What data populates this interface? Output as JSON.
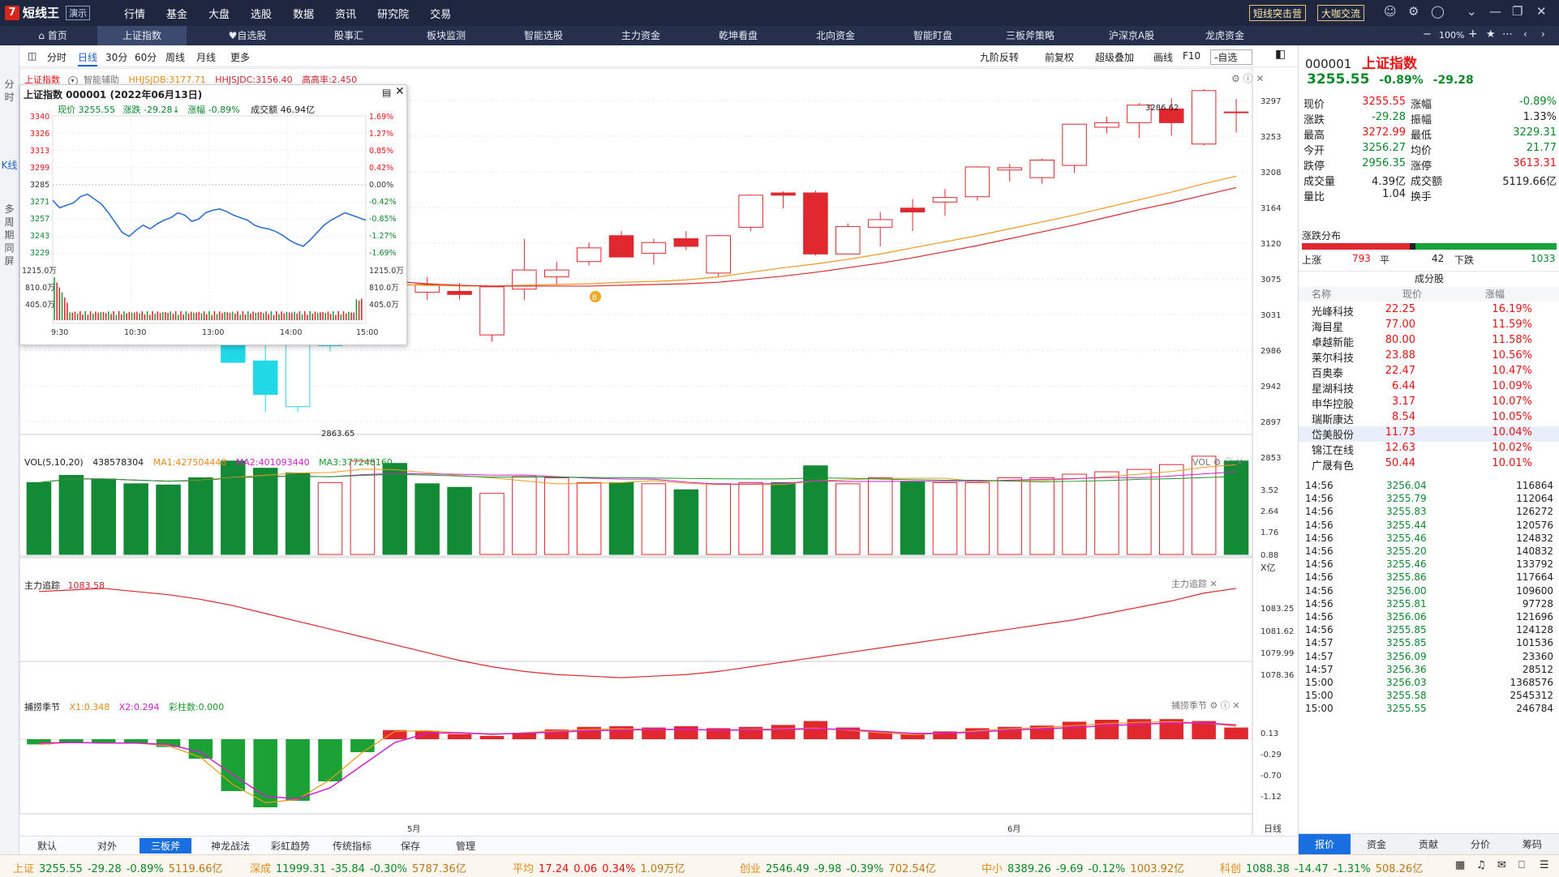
{
  "titlebar": {
    "logo_char": "7",
    "app_name": "短线王",
    "demo_badge": "演示",
    "menu": [
      "行情",
      "基金",
      "大盘",
      "选股",
      "数据",
      "资讯",
      "研究院",
      "交易"
    ],
    "btn1": "短线突击营",
    "btn2": "大咖交流"
  },
  "navbar": {
    "tabs": [
      "首页",
      "上证指数",
      "自选股",
      "股事汇",
      "板块监测",
      "智能选股",
      "主力资金",
      "乾坤看盘",
      "北向资金",
      "智能盯盘",
      "三板斧策略",
      "沪深京A股",
      "龙虎资金"
    ],
    "zoom": "100%"
  },
  "sidebar": [
    "分时",
    "K线",
    "多周期同屏"
  ],
  "toolbar": {
    "periods": [
      "分时",
      "日线",
      "30分",
      "60分",
      "周线",
      "月线",
      "更多"
    ],
    "right": [
      "九阶反转",
      "前复权",
      "超级叠加",
      "画线",
      "F10"
    ],
    "watchlist": "-自选"
  },
  "chart_header": {
    "name": "上证指数",
    "assist": "智能辅助",
    "hhjsjdb": "HHJSJDB:3177.71",
    "hhjsjdc": "HHJSJDC:3156.40",
    "ratio": "高高率:2.450"
  },
  "popup": {
    "title": "上证指数 000001 (2022年06月13日)",
    "price_label": "现价",
    "price": "3255.55",
    "change_label": "涨跌",
    "change": "-29.28↓",
    "pct_label": "涨幅",
    "pct": "-0.89%",
    "amt_label": "成交额",
    "amt": "46.94亿",
    "left_ticks": [
      "3340",
      "3326",
      "3313",
      "3299",
      "3285",
      "3271",
      "3257",
      "3243",
      "3229"
    ],
    "right_ticks": [
      "1.69%",
      "1.27%",
      "0.85%",
      "0.42%",
      "0.00%",
      "-0.42%",
      "-0.85%",
      "-1.27%",
      "-1.69%"
    ],
    "vol_ticks": [
      "1215.0万",
      "810.0万",
      "405.0万"
    ],
    "times": [
      "9:30",
      "10:30",
      "13:00",
      "14:00",
      "15:00"
    ],
    "intraday": [
      3272,
      3266,
      3268,
      3270,
      3275,
      3277,
      3273,
      3269,
      3262,
      3254,
      3246,
      3243,
      3248,
      3252,
      3249,
      3253,
      3256,
      3258,
      3262,
      3260,
      3255,
      3257,
      3262,
      3264,
      3265,
      3263,
      3260,
      3258,
      3256,
      3252,
      3250,
      3249,
      3247,
      3244,
      3240,
      3237,
      3235,
      3240,
      3246,
      3252,
      3256,
      3259,
      3262,
      3260,
      3258,
      3256
    ]
  },
  "price_axis": [
    "3297",
    "3253",
    "3208",
    "3164",
    "3120",
    "3075",
    "3031",
    "2986",
    "2942",
    "2897",
    "2853"
  ],
  "annotations": {
    "high": "3286.62",
    "low": "2863.65",
    "b_marker": "B"
  },
  "vol_panel": {
    "label": "VOL(5,10,20)",
    "value": "438578304",
    "ma1": "MA1:427504448",
    "ma2": "MA2:401093440",
    "ma3": "MA3:377248160",
    "title": "VOL",
    "ticks": [
      "3.52",
      "2.64",
      "1.76",
      "0.88"
    ],
    "unit": "X亿"
  },
  "zhuli_panel": {
    "label": "主力追踪",
    "value": "1083.58",
    "ticks": [
      "1083.25",
      "1081.62",
      "1079.99",
      "1078.36"
    ]
  },
  "buzhuo_panel": {
    "label": "捕捞季节",
    "x1": "X1:0.348",
    "x2": "X2:0.294",
    "color_bar": "彩柱数:0.000",
    "ticks": [
      "0.13",
      "-0.29",
      "-0.70",
      "-1.12"
    ]
  },
  "x_axis": {
    "m5": "5月",
    "m6": "6月",
    "period": "日线"
  },
  "bottom_tabs": [
    "默认",
    "对外",
    "三板斧",
    "神龙战法",
    "彩虹趋势",
    "传统指标",
    "保存",
    "管理"
  ],
  "right_panel": {
    "code": "000001",
    "name": "上证指数",
    "price": "3255.55",
    "pct": "-0.89%",
    "change": "-29.28",
    "quote_rows": [
      {
        "l1": "现价",
        "v1": "3255.55",
        "l2": "涨幅",
        "v2": "-0.89%",
        "c1": "red",
        "c2": "green"
      },
      {
        "l1": "涨跌",
        "v1": "-29.28",
        "l2": "振幅",
        "v2": "1.33%",
        "c1": "green",
        "c2": "black"
      },
      {
        "l1": "最高",
        "v1": "3272.99",
        "l2": "最低",
        "v2": "3229.31",
        "c1": "red",
        "c2": "green"
      },
      {
        "l1": "今开",
        "v1": "3256.27",
        "l2": "均价",
        "v2": "21.77",
        "c1": "green",
        "c2": "green"
      },
      {
        "l1": "跌停",
        "v1": "2956.35",
        "l2": "涨停",
        "v2": "3613.31",
        "c1": "green",
        "c2": "red"
      },
      {
        "l1": "成交量",
        "v1": "4.39亿",
        "l2": "成交额",
        "v2": "5119.66亿",
        "c1": "black",
        "c2": "black"
      },
      {
        "l1": "量比",
        "v1": "1.04",
        "l2": "换手",
        "v2": "",
        "c1": "black",
        "c2": "black"
      }
    ],
    "dist_title": "涨跌分布",
    "up_label": "上涨",
    "up": "793",
    "flat_label": "平",
    "flat": "42",
    "down_label": "下跌",
    "down": "1033",
    "components_title": "成分股",
    "comp_headers": [
      "名称",
      "现价",
      "涨幅"
    ],
    "components": [
      {
        "name": "光峰科技",
        "price": "22.25",
        "pct": "16.19%"
      },
      {
        "name": "海目星",
        "price": "77.00",
        "pct": "11.59%"
      },
      {
        "name": "卓越新能",
        "price": "80.00",
        "pct": "11.58%"
      },
      {
        "name": "莱尔科技",
        "price": "23.88",
        "pct": "10.56%"
      },
      {
        "name": "百奥泰",
        "price": "22.47",
        "pct": "10.47%"
      },
      {
        "name": "星湖科技",
        "price": "6.44",
        "pct": "10.09%"
      },
      {
        "name": "申华控股",
        "price": "3.17",
        "pct": "10.07%"
      },
      {
        "name": "瑞斯康达",
        "price": "8.54",
        "pct": "10.05%"
      },
      {
        "name": "岱美股份",
        "price": "11.73",
        "pct": "10.04%"
      },
      {
        "name": "锦江在线",
        "price": "12.63",
        "pct": "10.02%"
      },
      {
        "name": "广晟有色",
        "price": "50.44",
        "pct": "10.01%"
      }
    ],
    "ticks": [
      {
        "t": "14:56",
        "p": "3256.04",
        "v": "116864"
      },
      {
        "t": "14:56",
        "p": "3255.79",
        "v": "112064"
      },
      {
        "t": "14:56",
        "p": "3255.83",
        "v": "126272"
      },
      {
        "t": "14:56",
        "p": "3255.44",
        "v": "120576"
      },
      {
        "t": "14:56",
        "p": "3255.46",
        "v": "124832"
      },
      {
        "t": "14:56",
        "p": "3255.20",
        "v": "140832"
      },
      {
        "t": "14:56",
        "p": "3255.46",
        "v": "133792"
      },
      {
        "t": "14:56",
        "p": "3255.86",
        "v": "117664"
      },
      {
        "t": "14:56",
        "p": "3256.00",
        "v": "109600"
      },
      {
        "t": "14:56",
        "p": "3255.81",
        "v": "97728"
      },
      {
        "t": "14:56",
        "p": "3256.06",
        "v": "121696"
      },
      {
        "t": "14:56",
        "p": "3255.85",
        "v": "124128"
      },
      {
        "t": "14:57",
        "p": "3255.85",
        "v": "101536"
      },
      {
        "t": "14:57",
        "p": "3256.09",
        "v": "23360"
      },
      {
        "t": "14:57",
        "p": "3256.36",
        "v": "28512"
      },
      {
        "t": "15:00",
        "p": "3256.03",
        "v": "1368576"
      },
      {
        "t": "15:00",
        "p": "3255.58",
        "v": "2545312"
      },
      {
        "t": "15:00",
        "p": "3255.55",
        "v": "246784"
      }
    ],
    "tabs": [
      "报价",
      "资金",
      "贡献",
      "分价",
      "筹码"
    ]
  },
  "statusbar": [
    {
      "label": "上证",
      "v1": "3255.55",
      "v2": "-29.28",
      "v3": "-0.89%",
      "v4": "5119.66亿",
      "dir": "down"
    },
    {
      "label": "深成",
      "v1": "11999.31",
      "v2": "-35.84",
      "v3": "-0.30%",
      "v4": "5787.36亿",
      "dir": "down"
    },
    {
      "label": "平均",
      "v1": "17.24",
      "v2": "0.06",
      "v3": "0.34%",
      "v4": "1.09万亿",
      "dir": "up"
    },
    {
      "label": "创业",
      "v1": "2546.49",
      "v2": "-9.98",
      "v3": "-0.39%",
      "v4": "702.54亿",
      "dir": "down"
    },
    {
      "label": "中小",
      "v1": "8389.26",
      "v2": "-9.69",
      "v3": "-0.12%",
      "v4": "1003.92亿",
      "dir": "down"
    },
    {
      "label": "科创",
      "v1": "1088.38",
      "v2": "-14.47",
      "v3": "-1.31%",
      "v4": "508.26亿",
      "dir": "down"
    }
  ],
  "chart_data": {
    "type": "candlestick",
    "price_range": [
      2840,
      3305
    ],
    "candles": [
      {
        "o": 3120,
        "h": 3135,
        "l": 3086,
        "c": 3094
      },
      {
        "o": 3082,
        "h": 3095,
        "l": 3060,
        "c": 3070
      },
      {
        "o": 3060,
        "h": 3080,
        "l": 3050,
        "c": 3055
      },
      {
        "o": 3050,
        "h": 3060,
        "l": 3040,
        "c": 3046
      },
      {
        "o": 3040,
        "h": 3062,
        "l": 3032,
        "c": 3058
      },
      {
        "o": 3050,
        "h": 3065,
        "l": 3020,
        "c": 3030
      },
      {
        "o": 2957,
        "h": 3000,
        "l": 2930,
        "c": 2928
      },
      {
        "o": 2930,
        "h": 2950,
        "l": 2863,
        "c": 2886
      },
      {
        "o": 2870,
        "h": 2970,
        "l": 2863,
        "c": 2958
      },
      {
        "o": 2950,
        "h": 2975,
        "l": 2942,
        "c": 2958
      },
      {
        "o": 2985,
        "h": 3050,
        "l": 2960,
        "c": 3047
      },
      {
        "o": 3055,
        "h": 3080,
        "l": 3040,
        "c": 3068
      },
      {
        "o": 3020,
        "h": 3040,
        "l": 3010,
        "c": 3030
      },
      {
        "o": 3021,
        "h": 3032,
        "l": 3010,
        "c": 3017
      },
      {
        "o": 2964,
        "h": 3026,
        "l": 2955,
        "c": 3027
      },
      {
        "o": 3024,
        "h": 3090,
        "l": 3010,
        "c": 3049
      },
      {
        "o": 3040,
        "h": 3060,
        "l": 3030,
        "c": 3049
      },
      {
        "o": 3060,
        "h": 3085,
        "l": 3055,
        "c": 3078
      },
      {
        "o": 3094,
        "h": 3100,
        "l": 3066,
        "c": 3066
      },
      {
        "o": 3071,
        "h": 3090,
        "l": 3056,
        "c": 3085
      },
      {
        "o": 3090,
        "h": 3100,
        "l": 3075,
        "c": 3080
      },
      {
        "o": 3045,
        "h": 3095,
        "l": 3040,
        "c": 3094
      },
      {
        "o": 3105,
        "h": 3148,
        "l": 3100,
        "c": 3147
      },
      {
        "o": 3150,
        "h": 3152,
        "l": 3130,
        "c": 3147
      },
      {
        "o": 3150,
        "h": 3153,
        "l": 3068,
        "c": 3070
      },
      {
        "o": 3070,
        "h": 3110,
        "l": 3070,
        "c": 3106
      },
      {
        "o": 3105,
        "h": 3125,
        "l": 3080,
        "c": 3115
      },
      {
        "o": 3130,
        "h": 3142,
        "l": 3100,
        "c": 3125
      },
      {
        "o": 3138,
        "h": 3155,
        "l": 3120,
        "c": 3144
      },
      {
        "o": 3145,
        "h": 3185,
        "l": 3140,
        "c": 3184
      },
      {
        "o": 3180,
        "h": 3188,
        "l": 3165,
        "c": 3183
      },
      {
        "o": 3170,
        "h": 3195,
        "l": 3162,
        "c": 3193
      },
      {
        "o": 3186,
        "h": 3240,
        "l": 3176,
        "c": 3240
      },
      {
        "o": 3236,
        "h": 3250,
        "l": 3228,
        "c": 3242
      },
      {
        "o": 3242,
        "h": 3268,
        "l": 3222,
        "c": 3265
      },
      {
        "o": 3260,
        "h": 3274,
        "l": 3225,
        "c": 3242
      },
      {
        "o": 3214,
        "h": 3286,
        "l": 3212,
        "c": 3284
      },
      {
        "o": 3256,
        "h": 3273,
        "l": 3229,
        "c": 3256
      }
    ],
    "ma_orange": [
      3120,
      3105,
      3092,
      3080,
      3070,
      3060,
      3052,
      3045,
      3040,
      3036,
      3032,
      3030,
      3029,
      3028,
      3028,
      3029,
      3030,
      3031,
      3033,
      3034,
      3036,
      3040,
      3046,
      3052,
      3057,
      3063,
      3070,
      3078,
      3086,
      3094,
      3103,
      3112,
      3121,
      3131,
      3141,
      3151,
      3162,
      3172
    ],
    "ma_red": [
      3118,
      3110,
      3100,
      3090,
      3080,
      3070,
      3063,
      3056,
      3049,
      3043,
      3038,
      3034,
      3031,
      3029,
      3028,
      3028,
      3028,
      3028,
      3029,
      3030,
      3031,
      3033,
      3037,
      3041,
      3046,
      3052,
      3058,
      3065,
      3073,
      3081,
      3090,
      3099,
      3108,
      3118,
      3128,
      3137,
      3147,
      3157
    ],
    "volumes": [
      {
        "v": 3.0,
        "up": false
      },
      {
        "v": 3.3,
        "up": false
      },
      {
        "v": 3.15,
        "up": false
      },
      {
        "v": 2.95,
        "up": false
      },
      {
        "v": 2.9,
        "up": false
      },
      {
        "v": 3.2,
        "up": false
      },
      {
        "v": 3.9,
        "up": false
      },
      {
        "v": 3.6,
        "up": false
      },
      {
        "v": 3.4,
        "up": false
      },
      {
        "v": 3.0,
        "up": true
      },
      {
        "v": 3.9,
        "up": true
      },
      {
        "v": 3.8,
        "up": false
      },
      {
        "v": 2.95,
        "up": false
      },
      {
        "v": 2.8,
        "up": false
      },
      {
        "v": 2.55,
        "up": true
      },
      {
        "v": 3.25,
        "up": true
      },
      {
        "v": 3.2,
        "up": true
      },
      {
        "v": 3.0,
        "up": true
      },
      {
        "v": 3.0,
        "up": false
      },
      {
        "v": 2.95,
        "up": true
      },
      {
        "v": 2.7,
        "up": false
      },
      {
        "v": 2.95,
        "up": true
      },
      {
        "v": 3.0,
        "up": true
      },
      {
        "v": 3.0,
        "up": false
      },
      {
        "v": 3.7,
        "up": false
      },
      {
        "v": 2.95,
        "up": true
      },
      {
        "v": 3.2,
        "up": true
      },
      {
        "v": 3.05,
        "up": false
      },
      {
        "v": 3.0,
        "up": true
      },
      {
        "v": 3.0,
        "up": true
      },
      {
        "v": 3.2,
        "up": true
      },
      {
        "v": 3.2,
        "up": true
      },
      {
        "v": 3.35,
        "up": true
      },
      {
        "v": 3.45,
        "up": true
      },
      {
        "v": 3.55,
        "up": true
      },
      {
        "v": 3.75,
        "up": true
      },
      {
        "v": 4.1,
        "up": true
      },
      {
        "v": 3.9,
        "up": false
      }
    ],
    "zhuli": [
      1083.4,
      1083.5,
      1083.6,
      1083.4,
      1083.2,
      1082.9,
      1082.5,
      1082.0,
      1081.5,
      1081.0,
      1080.5,
      1080.0,
      1079.5,
      1079.0,
      1078.6,
      1078.3,
      1078.1,
      1078.0,
      1077.9,
      1078.0,
      1078.1,
      1078.3,
      1078.6,
      1078.9,
      1079.2,
      1079.5,
      1079.8,
      1080.1,
      1080.4,
      1080.7,
      1081.0,
      1081.3,
      1081.6,
      1082.0,
      1082.4,
      1082.8,
      1083.3,
      1083.6
    ],
    "buzhuo_hist": [
      -0.08,
      -0.05,
      -0.06,
      -0.07,
      -0.12,
      -0.3,
      -0.8,
      -1.05,
      -0.95,
      -0.65,
      -0.2,
      0.14,
      0.13,
      0.08,
      0.05,
      0.1,
      0.15,
      0.19,
      0.2,
      0.18,
      0.2,
      0.17,
      0.19,
      0.22,
      0.28,
      0.18,
      0.12,
      0.08,
      0.12,
      0.17,
      0.19,
      0.21,
      0.27,
      0.3,
      0.31,
      0.31,
      0.28,
      0.18
    ],
    "buzhuo_x1": [
      -0.08,
      -0.05,
      -0.06,
      -0.06,
      -0.1,
      -0.28,
      -0.7,
      -0.98,
      -0.93,
      -0.62,
      -0.2,
      0.12,
      0.13,
      0.1,
      0.07,
      0.1,
      0.13,
      0.15,
      0.16,
      0.15,
      0.15,
      0.14,
      0.15,
      0.16,
      0.17,
      0.14,
      0.1,
      0.07,
      0.09,
      0.13,
      0.16,
      0.18,
      0.21,
      0.24,
      0.26,
      0.27,
      0.25,
      0.2
    ],
    "buzhuo_x2": [
      -0.06,
      -0.05,
      -0.06,
      -0.06,
      -0.08,
      -0.2,
      -0.55,
      -0.88,
      -0.92,
      -0.75,
      -0.4,
      -0.05,
      0.09,
      0.1,
      0.08,
      0.09,
      0.11,
      0.13,
      0.14,
      0.15,
      0.15,
      0.14,
      0.14,
      0.15,
      0.16,
      0.15,
      0.12,
      0.09,
      0.09,
      0.11,
      0.14,
      0.16,
      0.18,
      0.21,
      0.23,
      0.25,
      0.25,
      0.22
    ]
  }
}
